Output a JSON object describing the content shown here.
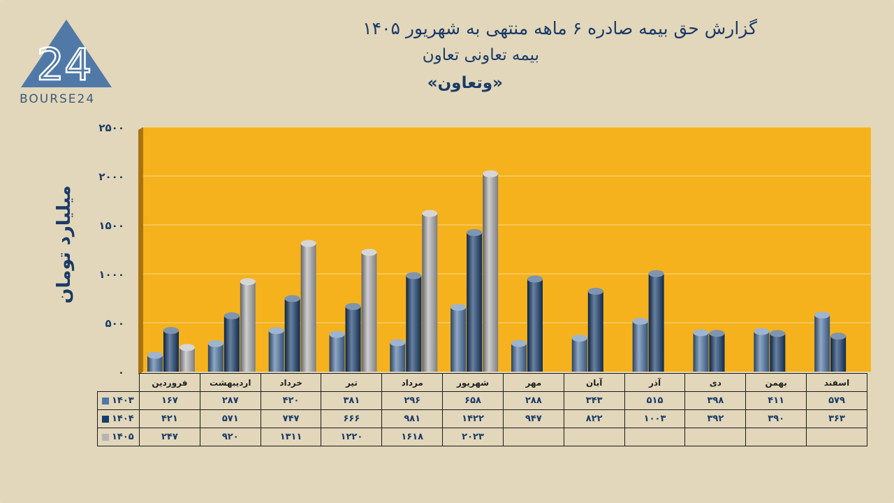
{
  "title": {
    "line1": "گزارش  حق بیمه صادره ۶ ماهه منتهی به شهریور ۱۴۰۵",
    "line2": "بیمه تعاونی تعاون",
    "line3": "«وتعاون»"
  },
  "logo": {
    "mark": "24",
    "text": "BOURSE24"
  },
  "chart_data": {
    "type": "bar",
    "ylabel": "میلیارد تومان",
    "ylim": [
      0,
      2500
    ],
    "yticks": [
      "۰",
      "۵۰۰",
      "۱۰۰۰",
      "۱۵۰۰",
      "۲۰۰۰",
      "۲۵۰۰"
    ],
    "ytick_values": [
      0,
      500,
      1000,
      1500,
      2000,
      2500
    ],
    "grid": true,
    "categories": [
      "فروردین",
      "اردیبهشت",
      "خرداد",
      "تیر",
      "مرداد",
      "شهریور",
      "مهر",
      "آبان",
      "آذر",
      "دی",
      "بهمن",
      "اسفند"
    ],
    "series": [
      {
        "name": "۱۴۰۳",
        "color": "#4f77a8",
        "values": [
          167,
          287,
          420,
          381,
          296,
          658,
          288,
          343,
          515,
          398,
          411,
          579
        ],
        "labels": [
          "۱۶۷",
          "۲۸۷",
          "۴۲۰",
          "۳۸۱",
          "۲۹۶",
          "۶۵۸",
          "۲۸۸",
          "۳۴۳",
          "۵۱۵",
          "۳۹۸",
          "۴۱۱",
          "۵۷۹"
        ]
      },
      {
        "name": "۱۴۰۴",
        "color": "#173d6e",
        "values": [
          421,
          571,
          747,
          666,
          981,
          1422,
          947,
          822,
          1003,
          392,
          390,
          363
        ],
        "labels": [
          "۴۲۱",
          "۵۷۱",
          "۷۴۷",
          "۶۶۶",
          "۹۸۱",
          "۱۴۲۲",
          "۹۴۷",
          "۸۲۲",
          "۱۰۰۳",
          "۳۹۲",
          "۳۹۰",
          "۳۶۳"
        ]
      },
      {
        "name": "۱۴۰۵",
        "color": "#b4b4b4",
        "values": [
          247,
          920,
          1311,
          1220,
          1618,
          2023,
          null,
          null,
          null,
          null,
          null,
          null
        ],
        "labels": [
          "۲۴۷",
          "۹۲۰",
          "۱۳۱۱",
          "۱۲۲۰",
          "۱۶۱۸",
          "۲۰۲۳",
          "",
          "",
          "",
          "",
          "",
          ""
        ]
      }
    ]
  },
  "colors": {
    "plot_bg": "#f5b21c",
    "background": "#e2d7bb",
    "title": "#1b3a66"
  }
}
